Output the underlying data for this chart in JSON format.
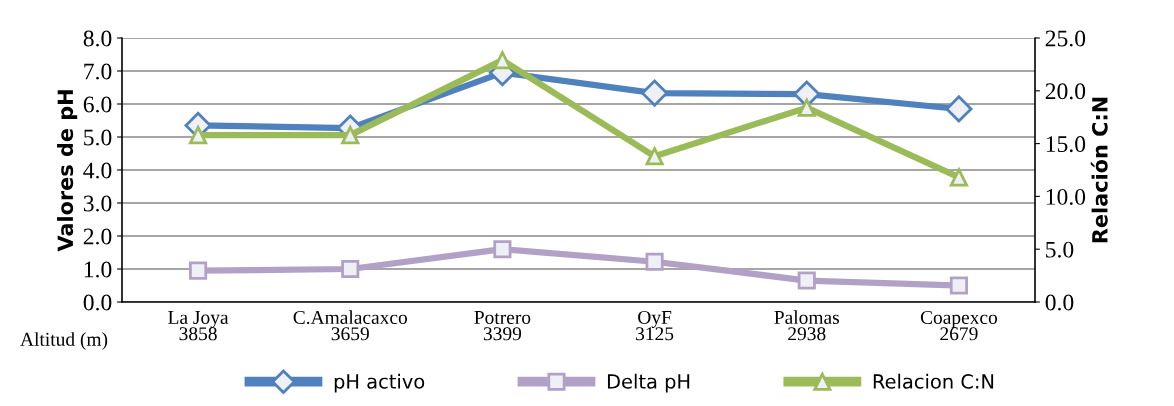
{
  "chart_data": {
    "type": "line",
    "ylabel": "Valores de pH",
    "y2label": "Relación C:N",
    "categories": [
      "La Joya\n3858",
      "C.Amalacaxco\n3659",
      "Potrero\n3399",
      "OyF\n3125",
      "Palomas\n2938",
      "Coapexco\n2679"
    ],
    "series": [
      {
        "name": "pH activo",
        "color": "#4f81bd",
        "marker": "diamond",
        "values": [
          5.35,
          5.27,
          6.95,
          6.33,
          6.3,
          5.85
        ]
      },
      {
        "name": "Delta pH",
        "color": "#b2a1c7",
        "marker": "square",
        "values": [
          0.95,
          1.0,
          1.6,
          1.22,
          0.65,
          0.5
        ]
      },
      {
        "name": "Relacion C:N",
        "color": "#9bbb59",
        "marker": "triangle",
        "axis": "y2",
        "values": [
          15.8,
          15.8,
          22.9,
          13.8,
          18.4,
          11.8
        ]
      }
    ],
    "ylim": [
      0,
      8
    ],
    "yticks": [
      {
        "value": 0,
        "label": "0.0"
      },
      {
        "value": 1,
        "label": "1.0"
      },
      {
        "value": 2,
        "label": "2.0"
      },
      {
        "value": 3,
        "label": "3.0"
      },
      {
        "value": 4,
        "label": "4.0"
      },
      {
        "value": 5,
        "label": "5.0"
      },
      {
        "value": 6,
        "label": "6.0"
      },
      {
        "value": 7,
        "label": "7.0"
      },
      {
        "value": 8,
        "label": "8.0"
      }
    ],
    "y2lim": [
      0,
      25
    ],
    "y2ticks": [
      {
        "value": 0,
        "label": "0.0"
      },
      {
        "value": 5,
        "label": "5.0"
      },
      {
        "value": 10,
        "label": "10.0"
      },
      {
        "value": 15,
        "label": "15.0"
      },
      {
        "value": 20,
        "label": "20.0"
      },
      {
        "value": 25,
        "label": "25.0"
      }
    ],
    "grid": "y",
    "legend": "bottom",
    "annotations": [
      "Altitud (m)"
    ]
  }
}
